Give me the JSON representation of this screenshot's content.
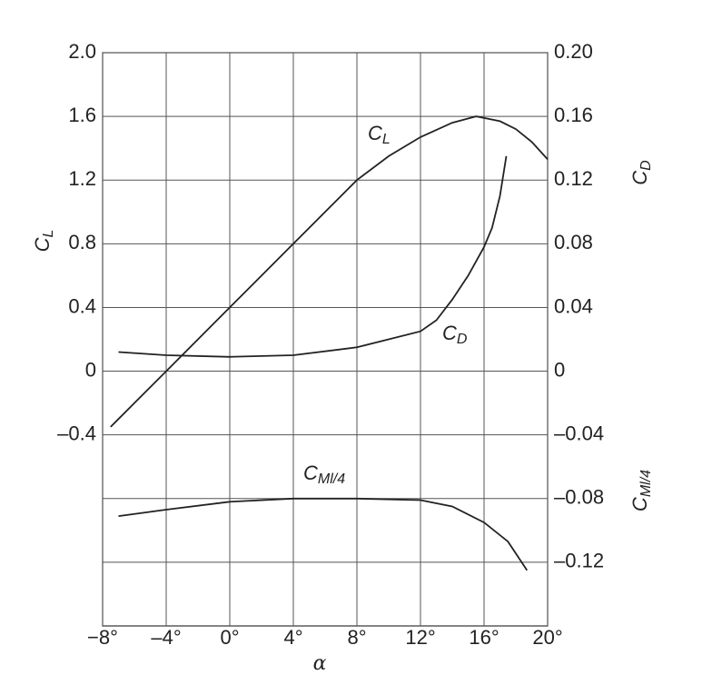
{
  "chart_data": {
    "type": "line",
    "xlabel": "α",
    "ylabel": "CL",
    "y2label": "CD",
    "y2label_2": "CMl/4",
    "xlim": [
      -8,
      20
    ],
    "xticks": [
      {
        "value": -8,
        "label": "−8°"
      },
      {
        "value": -4,
        "label": "–4°"
      },
      {
        "value": 0,
        "label": "0°"
      },
      {
        "value": 4,
        "label": "4°"
      },
      {
        "value": 8,
        "label": "8°"
      },
      {
        "value": 12,
        "label": "12°"
      },
      {
        "value": 16,
        "label": "16°"
      },
      {
        "value": 20,
        "label": "20°"
      }
    ],
    "ylim": [
      -1.6,
      2.0
    ],
    "yticks": [
      {
        "value": 2.0,
        "label": "2.0"
      },
      {
        "value": 1.6,
        "label": "1.6"
      },
      {
        "value": 1.2,
        "label": "1.2"
      },
      {
        "value": 0.8,
        "label": "0.8"
      },
      {
        "value": 0.4,
        "label": "0.4"
      },
      0,
      {
        "value": -0.4,
        "label": "–0.4"
      }
    ],
    "y2lim": [
      -0.16,
      0.2
    ],
    "y2ticks": [
      {
        "value": 0.2,
        "label": "0.20"
      },
      {
        "value": 0.16,
        "label": "0.16"
      },
      {
        "value": 0.12,
        "label": "0.12"
      },
      {
        "value": 0.08,
        "label": "0.08"
      },
      {
        "value": 0.04,
        "label": "0.04"
      },
      0,
      {
        "value": -0.04,
        "label": "–0.04"
      },
      {
        "value": -0.08,
        "label": "–0.08"
      },
      {
        "value": -0.12,
        "label": "–0.12"
      }
    ],
    "grid": true,
    "series": [
      {
        "name": "CL",
        "color": "#222222",
        "x": [
          -7.5,
          -6,
          -4,
          -2,
          0,
          2,
          4,
          6,
          8,
          10,
          12,
          14,
          15.5,
          17,
          18,
          19,
          20
        ],
        "values": [
          -0.35,
          -0.2,
          0,
          0.2,
          0.4,
          0.6,
          0.8,
          1.0,
          1.2,
          1.35,
          1.47,
          1.56,
          1.6,
          1.57,
          1.52,
          1.44,
          1.33
        ]
      },
      {
        "name": "CD",
        "color": "#222222",
        "axis": "y2",
        "x": [
          -7,
          -4,
          0,
          4,
          8,
          12,
          13,
          14,
          15,
          16,
          16.5,
          17,
          17.4
        ],
        "values": [
          0.012,
          0.01,
          0.009,
          0.01,
          0.015,
          0.025,
          0.032,
          0.045,
          0.06,
          0.078,
          0.09,
          0.11,
          0.135
        ]
      },
      {
        "name": "CMl/4",
        "color": "#222222",
        "axis": "y2",
        "x": [
          -7,
          -4,
          0,
          4,
          5,
          8,
          12,
          14,
          16,
          17.5,
          18.7
        ],
        "values": [
          -0.091,
          -0.087,
          -0.082,
          -0.08,
          -0.08,
          -0.08,
          -0.081,
          -0.085,
          -0.095,
          -0.107,
          -0.125
        ]
      }
    ]
  }
}
